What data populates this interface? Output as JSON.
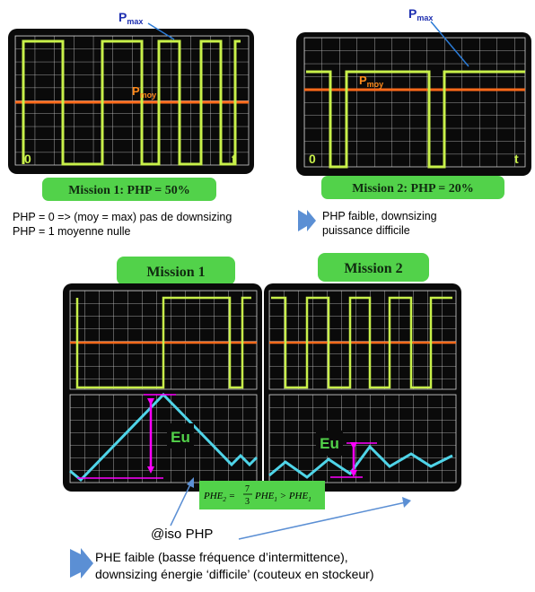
{
  "top": {
    "pmax_label_main": "P",
    "pmax_label_sub": "max",
    "pmoy_label_main": "P",
    "pmoy_label_sub": "moy",
    "axis_origin": "0",
    "axis_time": "t",
    "mission1_badge": "Mission 1: PHP = 50%",
    "mission2_badge": "Mission 2: PHP = 20%"
  },
  "notes": {
    "left_line1": "PHP = 0 => (moy = max) pas de downsizing",
    "left_line2": "PHP = 1 moyenne nulle",
    "right_line1": "PHP faible, downsizing",
    "right_line2": "puissance difficile"
  },
  "bottom": {
    "mission1_title": "Mission 1",
    "mission2_title": "Mission 2",
    "eu_label": "Eu",
    "formula_lhs": "PHE",
    "formula_lhs_sub": "2",
    "formula_eq": " = ",
    "formula_num": "7",
    "formula_den": "3",
    "formula_mid": "PHE",
    "formula_mid_sub": "1",
    "formula_gt": " > PHE",
    "formula_rhs_sub": "1",
    "iso_label": "@iso PHP",
    "conclusion_line1": "PHE faible (basse fréquence d’intermittence),",
    "conclusion_line2": "downsizing énergie ‘difficile’ (couteux en stockeur)"
  },
  "colors": {
    "screen_bg": "#0a0a0a",
    "grid": "#d8d8d8",
    "signal": "#c8f04a",
    "mean": "#ff6a1a",
    "energy": "#4fd4e8",
    "arrow_magenta": "#ff00ff",
    "badge_green": "#52d24a",
    "arrow_blue": "#5b8fd4"
  }
}
